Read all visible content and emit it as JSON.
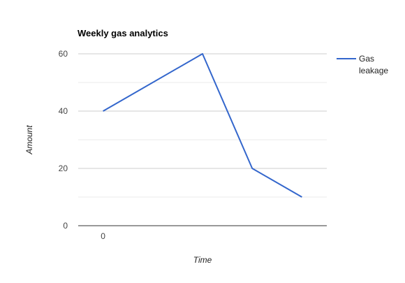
{
  "chart_data": {
    "type": "line",
    "title": "Weekly gas analytics",
    "xlabel": "Time",
    "ylabel": "Amount",
    "x": [
      0,
      2,
      3,
      4
    ],
    "x_tick_labels": [
      "0"
    ],
    "ylim": [
      0,
      60
    ],
    "y_ticks": [
      0,
      20,
      40,
      60
    ],
    "y_tick_labels": [
      "0",
      "20",
      "40",
      "60"
    ],
    "grid": true,
    "legend_position": "right",
    "series": [
      {
        "name": "Gas leakage",
        "values": [
          40,
          60,
          20,
          10
        ],
        "color": "#3366cc"
      }
    ]
  }
}
